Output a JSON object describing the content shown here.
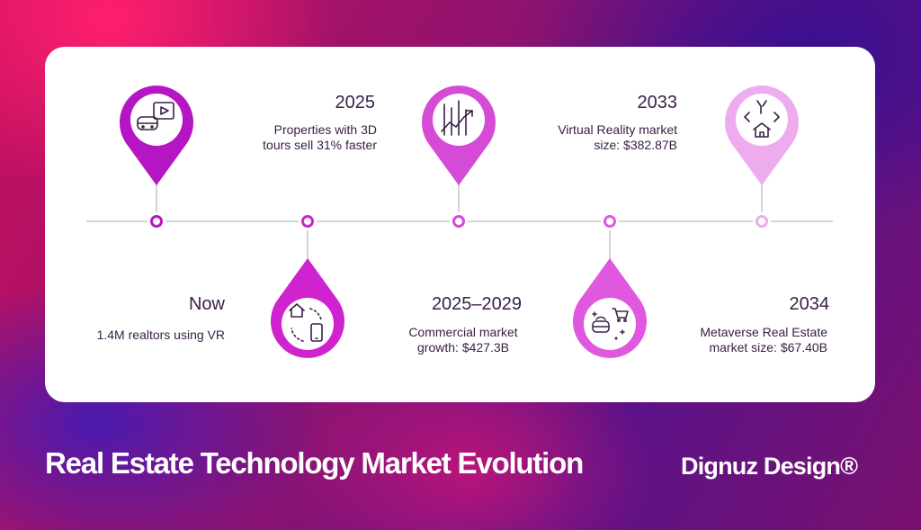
{
  "timeline": [
    {
      "year": "Now",
      "description": "1.4M realtors using VR",
      "icon": "vr-headset-video-icon",
      "color": "#b515c2"
    },
    {
      "year": "2025",
      "description": "Properties with 3D tours sell 31% faster",
      "icon": "house-phone-sync-icon",
      "color": "#cf23cf"
    },
    {
      "year": "2025–2029",
      "description": "Commercial market growth: $427.3B",
      "icon": "growth-chart-icon",
      "color": "#d64bd6"
    },
    {
      "year": "2033",
      "description": "Virtual Reality market size: $382.87B",
      "icon": "vr-shopping-cart-icon",
      "color": "#e057e0"
    },
    {
      "year": "2034",
      "description": "Metaverse Real Estate market size: $67.40B",
      "icon": "code-house-icon",
      "color": "#eeacee"
    }
  ],
  "footer": {
    "title": "Real Estate Technology Market Evolution",
    "brand": "Dignuz Design®"
  }
}
